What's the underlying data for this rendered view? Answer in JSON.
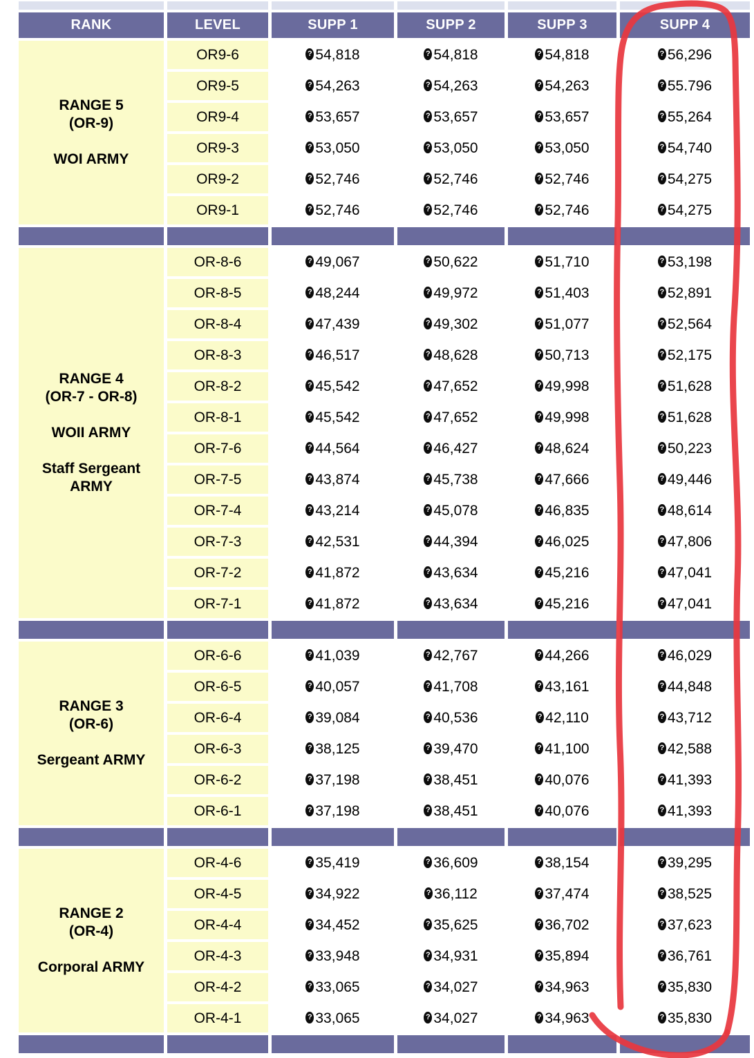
{
  "table": {
    "headers": [
      "RANK",
      "LEVEL",
      "SUPP 1",
      "SUPP 2",
      "SUPP 3",
      "SUPP 4"
    ],
    "currency_glyph": "?",
    "sections": [
      {
        "rank_lines": [
          "RANGE 5",
          "(OR-9)",
          "",
          "WOI ARMY"
        ],
        "rows": [
          {
            "level": "OR9-6",
            "supps": [
              "54,818",
              "54,818",
              "54,818",
              "56,296"
            ]
          },
          {
            "level": "OR9-5",
            "supps": [
              "54,263",
              "54,263",
              "54,263",
              "55.796"
            ]
          },
          {
            "level": "OR9-4",
            "supps": [
              "53,657",
              "53,657",
              "53,657",
              "55,264"
            ]
          },
          {
            "level": "OR9-3",
            "supps": [
              "53,050",
              "53,050",
              "53,050",
              "54,740"
            ]
          },
          {
            "level": "OR9-2",
            "supps": [
              "52,746",
              "52,746",
              "52,746",
              "54,275"
            ]
          },
          {
            "level": "OR9-1",
            "supps": [
              "52,746",
              "52,746",
              "52,746",
              "54,275"
            ]
          }
        ]
      },
      {
        "rank_lines": [
          "RANGE 4",
          "(OR-7 - OR-8)",
          "",
          "WOII ARMY",
          "",
          "Staff Sergeant",
          "ARMY"
        ],
        "rows": [
          {
            "level": "OR-8-6",
            "supps": [
              "49,067",
              "50,622",
              "51,710",
              "53,198"
            ]
          },
          {
            "level": "OR-8-5",
            "supps": [
              "48,244",
              "49,972",
              "51,403",
              "52,891"
            ]
          },
          {
            "level": "OR-8-4",
            "supps": [
              "47,439",
              "49,302",
              "51,077",
              "52,564"
            ]
          },
          {
            "level": "OR-8-3",
            "supps": [
              "46,517",
              "48,628",
              "50,713",
              "52,175"
            ]
          },
          {
            "level": "OR-8-2",
            "supps": [
              "45,542",
              "47,652",
              "49,998",
              "51,628"
            ]
          },
          {
            "level": "OR-8-1",
            "supps": [
              "45,542",
              "47,652",
              "49,998",
              "51,628"
            ]
          },
          {
            "level": "OR-7-6",
            "supps": [
              "44,564",
              "46,427",
              "48,624",
              "50,223"
            ]
          },
          {
            "level": "OR-7-5",
            "supps": [
              "43,874",
              "45,738",
              "47,666",
              "49,446"
            ]
          },
          {
            "level": "OR-7-4",
            "supps": [
              "43,214",
              "45,078",
              "46,835",
              "48,614"
            ]
          },
          {
            "level": "OR-7-3",
            "supps": [
              "42,531",
              "44,394",
              "46,025",
              "47,806"
            ]
          },
          {
            "level": "OR-7-2",
            "supps": [
              "41,872",
              "43,634",
              "45,216",
              "47,041"
            ]
          },
          {
            "level": "OR-7-1",
            "supps": [
              "41,872",
              "43,634",
              "45,216",
              "47,041"
            ]
          }
        ]
      },
      {
        "rank_lines": [
          "RANGE 3",
          "(OR-6)",
          "",
          "Sergeant ARMY"
        ],
        "rows": [
          {
            "level": "OR-6-6",
            "supps": [
              "41,039",
              "42,767",
              "44,266",
              "46,029"
            ]
          },
          {
            "level": "OR-6-5",
            "supps": [
              "40,057",
              "41,708",
              "43,161",
              "44,848"
            ]
          },
          {
            "level": "OR-6-4",
            "supps": [
              "39,084",
              "40,536",
              "42,110",
              "43,712"
            ]
          },
          {
            "level": "OR-6-3",
            "supps": [
              "38,125",
              "39,470",
              "41,100",
              "42,588"
            ]
          },
          {
            "level": "OR-6-2",
            "supps": [
              "37,198",
              "38,451",
              "40,076",
              "41,393"
            ]
          },
          {
            "level": "OR-6-1",
            "supps": [
              "37,198",
              "38,451",
              "40,076",
              "41,393"
            ]
          }
        ]
      },
      {
        "rank_lines": [
          "RANGE 2",
          "(OR-4)",
          "",
          "Corporal ARMY"
        ],
        "rows": [
          {
            "level": "OR-4-6",
            "supps": [
              "35,419",
              "36,609",
              "38,154",
              "39,295"
            ]
          },
          {
            "level": "OR-4-5",
            "supps": [
              "34,922",
              "36,112",
              "37,474",
              "38,525"
            ]
          },
          {
            "level": "OR-4-4",
            "supps": [
              "34,452",
              "35,625",
              "36,702",
              "37,623"
            ]
          },
          {
            "level": "OR-4-3",
            "supps": [
              "33,948",
              "34,931",
              "35,894",
              "36,761"
            ]
          },
          {
            "level": "OR-4-2",
            "supps": [
              "33,065",
              "34,027",
              "34,963",
              "35,830"
            ]
          },
          {
            "level": "OR-4-1",
            "supps": [
              "33,065",
              "34,027",
              "34,963",
              "35,830"
            ]
          }
        ]
      }
    ]
  },
  "colors": {
    "header_purple": "#6a6b9d",
    "cell_yellow": "#fbfbca",
    "top_sliver": "#dde1ee",
    "annotation_red": "#e8383f",
    "text": "#000000",
    "header_text": "#ffffff"
  },
  "annotation": {
    "description": "hand-drawn red loop circling the SUPP 4 column from header to bottom row",
    "target_column": "SUPP 4"
  }
}
